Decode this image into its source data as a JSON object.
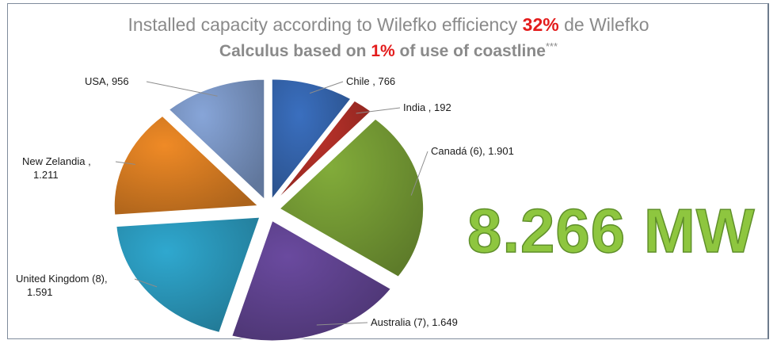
{
  "header": {
    "line1_prefix": "Installed capacity according to Wilefko efficiency ",
    "line1_highlight": "32%",
    "line1_suffix": " de Wilefko",
    "line2_prefix": "Calculus based on ",
    "line2_highlight": "1%",
    "line2_suffix": " of use of coastline",
    "line2_mark": "***"
  },
  "total_label": "8.266 MW",
  "colors": {
    "highlight": "#e31c1c",
    "total_fill": "#8ec63f"
  },
  "chart_data": {
    "type": "pie",
    "title": "Installed capacity according to Wilefko efficiency 32% de Wilefko",
    "subtitle": "Calculus based on 1% of use of coastline***",
    "slices": [
      {
        "category": "Chile",
        "value": 766,
        "label_lines": [
          "Chile ,  766"
        ],
        "color": "#3a6fbf"
      },
      {
        "category": "India",
        "value": 192,
        "label_lines": [
          "India ,  192"
        ],
        "color": "#c0332b"
      },
      {
        "category": "Canadá",
        "value": 1901,
        "label_lines": [
          "Canadá  (6), 1.901"
        ],
        "color": "#82ac3a"
      },
      {
        "category": "Australia",
        "value": 1649,
        "label_lines": [
          "Australia (7),  1.649"
        ],
        "color": "#6a4a9f"
      },
      {
        "category": "United Kingdom",
        "value": 1591,
        "label_lines": [
          "United Kingdom (8),",
          "1.591"
        ],
        "color": "#2fa8cf"
      },
      {
        "category": "New Zelandia",
        "value": 1211,
        "label_lines": [
          "New Zelandia ,",
          "1.211"
        ],
        "color": "#ef8a26"
      },
      {
        "category": "USA",
        "value": 956,
        "label_lines": [
          "USA,  956"
        ],
        "color": "#87a5d8"
      }
    ]
  }
}
